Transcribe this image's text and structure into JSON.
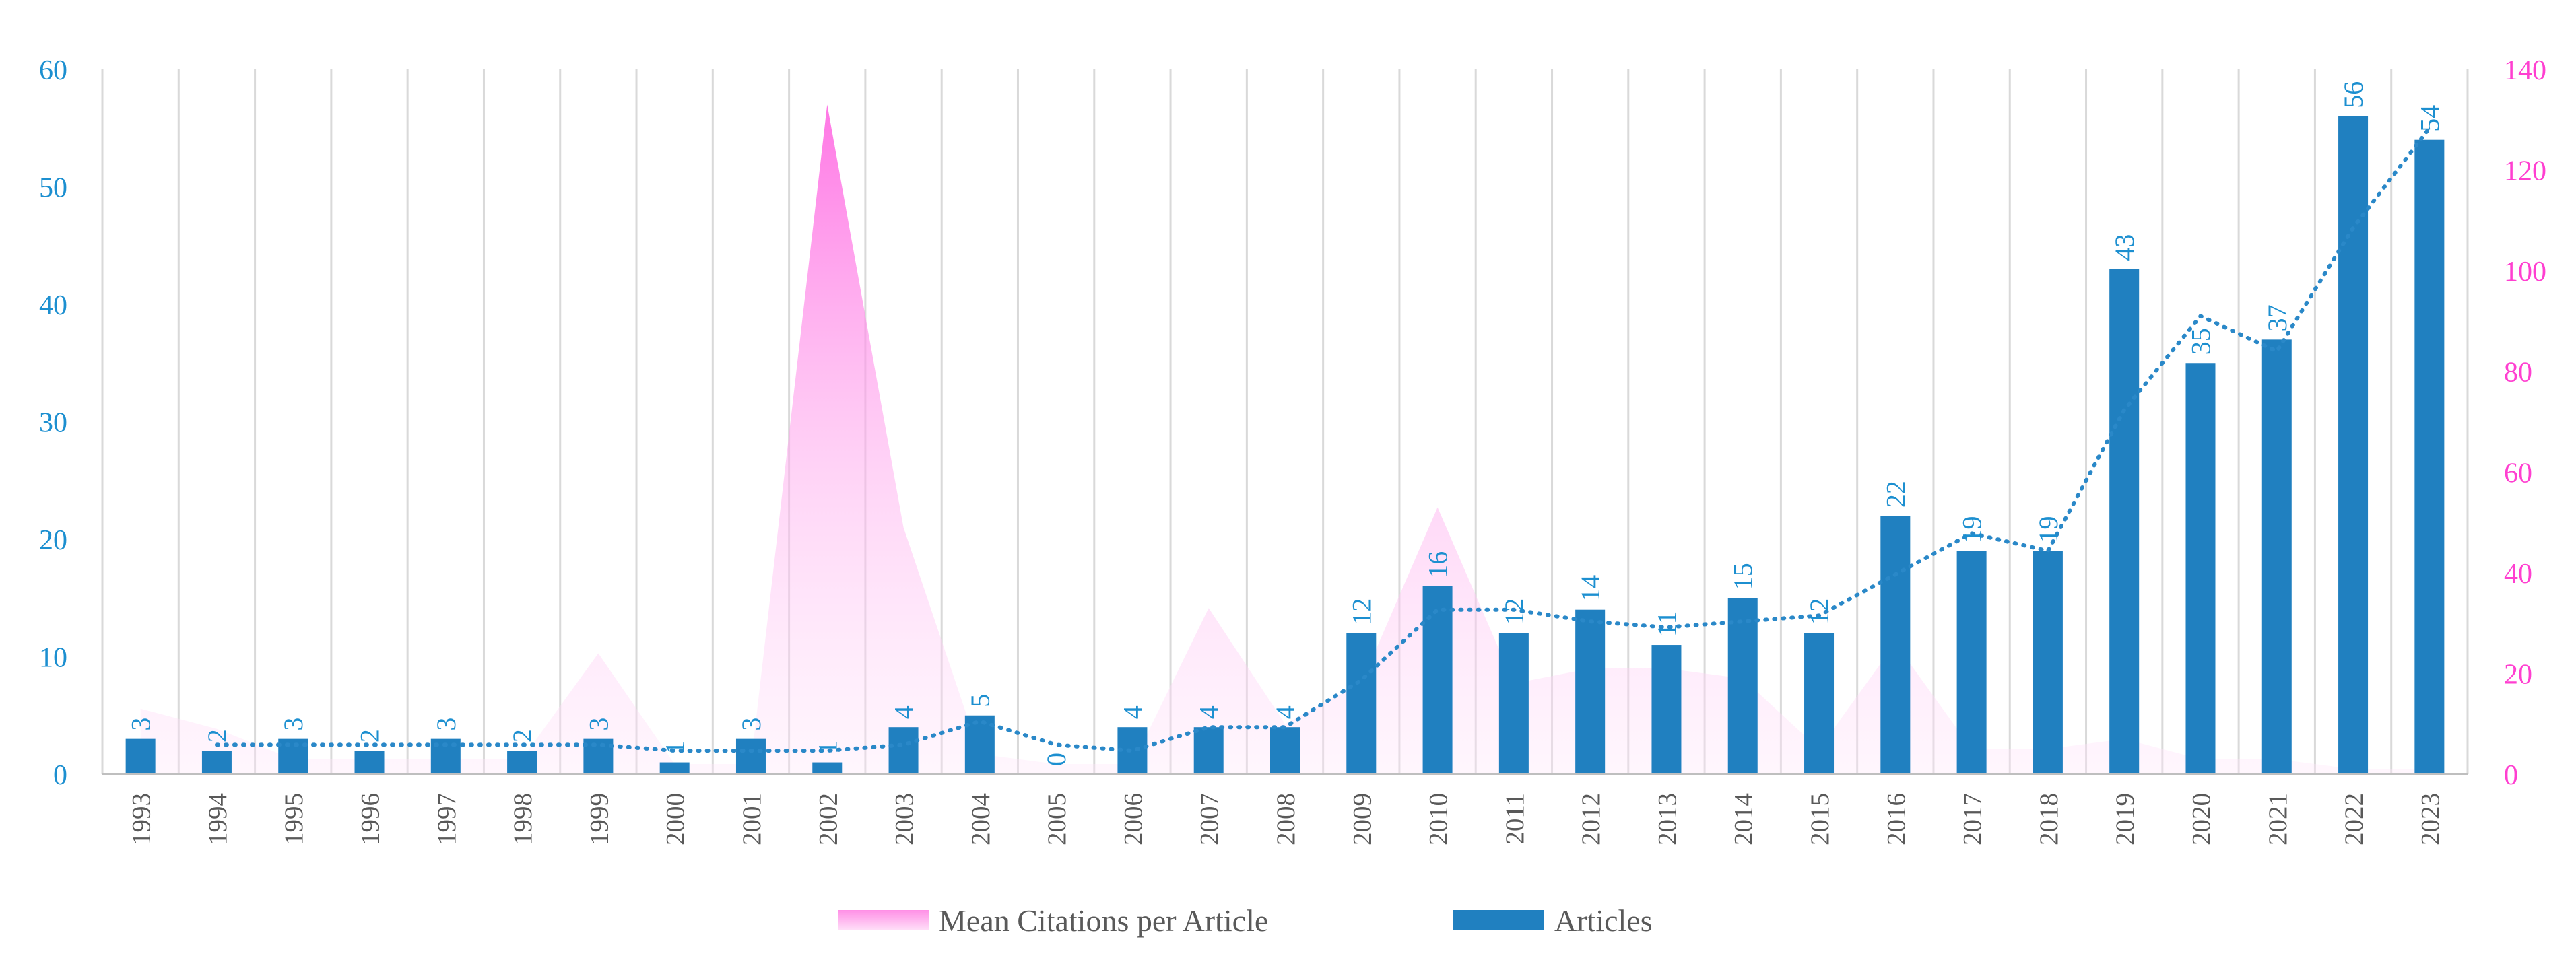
{
  "chart_data": {
    "type": "bar",
    "categories": [
      "1993",
      "1994",
      "1995",
      "1996",
      "1997",
      "1998",
      "1999",
      "2000",
      "2001",
      "2002",
      "2003",
      "2004",
      "2005",
      "2006",
      "2007",
      "2008",
      "2009",
      "2010",
      "2011",
      "2012",
      "2013",
      "2014",
      "2015",
      "2016",
      "2017",
      "2018",
      "2019",
      "2020",
      "2021",
      "2022",
      "2023"
    ],
    "series": [
      {
        "name": "Articles",
        "kind": "bar",
        "axis": "left",
        "color": "#2080c0",
        "values": [
          3,
          2,
          3,
          2,
          3,
          2,
          3,
          1,
          3,
          1,
          4,
          5,
          0,
          4,
          4,
          4,
          12,
          16,
          12,
          14,
          11,
          15,
          12,
          22,
          19,
          19,
          43,
          35,
          37,
          56,
          54
        ]
      },
      {
        "name": "Mean Citations per Article",
        "kind": "area",
        "axis": "right",
        "color": "#ff7fe0",
        "values": [
          13,
          9,
          3,
          3,
          3,
          3,
          24,
          2,
          2,
          133,
          49,
          4,
          2,
          2,
          33,
          10,
          18,
          53,
          18,
          21,
          21,
          19,
          5,
          26,
          5,
          5,
          7,
          3,
          3,
          1,
          1
        ]
      }
    ],
    "trendline": {
      "style": "dotted",
      "color": "#2a88c8",
      "note": "two-period moving average of Articles",
      "values": [
        null,
        2.5,
        2.5,
        2.5,
        2.5,
        2.5,
        2.5,
        2,
        2,
        2,
        2.5,
        4.5,
        2.5,
        2,
        4,
        4,
        8,
        14,
        14,
        13,
        12.5,
        13,
        13.5,
        17,
        20.5,
        19,
        31,
        39,
        36,
        46.5,
        55
      ]
    },
    "y_left": {
      "min": 0,
      "max": 60,
      "ticks": [
        0,
        10,
        20,
        30,
        40,
        50,
        60
      ],
      "color": "#1c8fd0"
    },
    "y_right": {
      "min": 0,
      "max": 140,
      "ticks": [
        0,
        20,
        40,
        60,
        80,
        100,
        120,
        140
      ],
      "color": "#ff3fd0"
    },
    "legend": {
      "position": "bottom",
      "items": [
        {
          "label": "Mean Citations per Article",
          "color": "#ff8fe6"
        },
        {
          "label": "Articles",
          "color": "#2080c0"
        }
      ]
    },
    "grid": {
      "vertical": true,
      "horizontal": false
    }
  }
}
